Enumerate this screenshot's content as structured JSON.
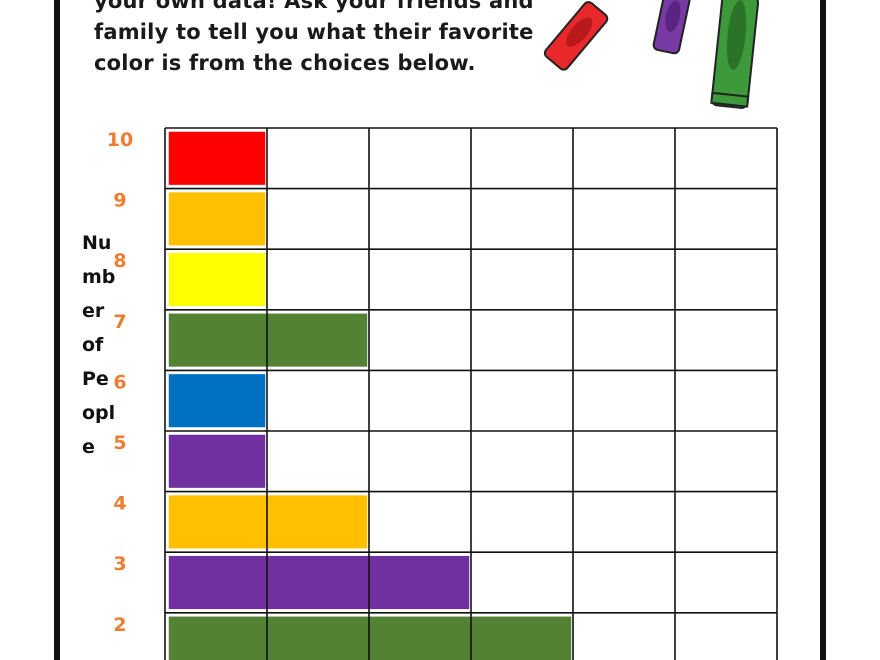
{
  "intro_lines": [
    "your own data! Ask your friends and",
    "family to tell you what their favorite",
    "color is from the choices below."
  ],
  "ylabel_lines": [
    "Nu",
    "mb",
    "er",
    "of",
    "Pe",
    "opl",
    "e"
  ],
  "chart_data": {
    "type": "bar",
    "orientation": "horizontal",
    "ylabel": "Number of People",
    "xlabel": "",
    "y_ticks": [
      "10",
      "9",
      "8",
      "7",
      "6",
      "5",
      "4",
      "3",
      "2"
    ],
    "x_range": [
      0,
      6
    ],
    "grid": true,
    "bars": [
      {
        "row": "10",
        "value": 1,
        "color": "#ff0000"
      },
      {
        "row": "9",
        "value": 1,
        "color": "#ffc000"
      },
      {
        "row": "8",
        "value": 1,
        "color": "#ffff00"
      },
      {
        "row": "7",
        "value": 2,
        "color": "#548235"
      },
      {
        "row": "6",
        "value": 1,
        "color": "#0070c0"
      },
      {
        "row": "5",
        "value": 1,
        "color": "#7030a0"
      },
      {
        "row": "4",
        "value": 2,
        "color": "#ffc000"
      },
      {
        "row": "3",
        "value": 3,
        "color": "#7030a0"
      },
      {
        "row": "2",
        "value": 4,
        "color": "#548235"
      }
    ],
    "tick_color": "#ed7d31"
  },
  "decor": {
    "crayons": [
      {
        "name": "red-crayon",
        "color": "#e8282b",
        "dark": "#b8191b"
      },
      {
        "name": "purple-crayon",
        "color": "#7a3aa5",
        "dark": "#5a2580"
      },
      {
        "name": "green-crayon",
        "color": "#3c9a3a",
        "dark": "#2a7328"
      }
    ]
  }
}
